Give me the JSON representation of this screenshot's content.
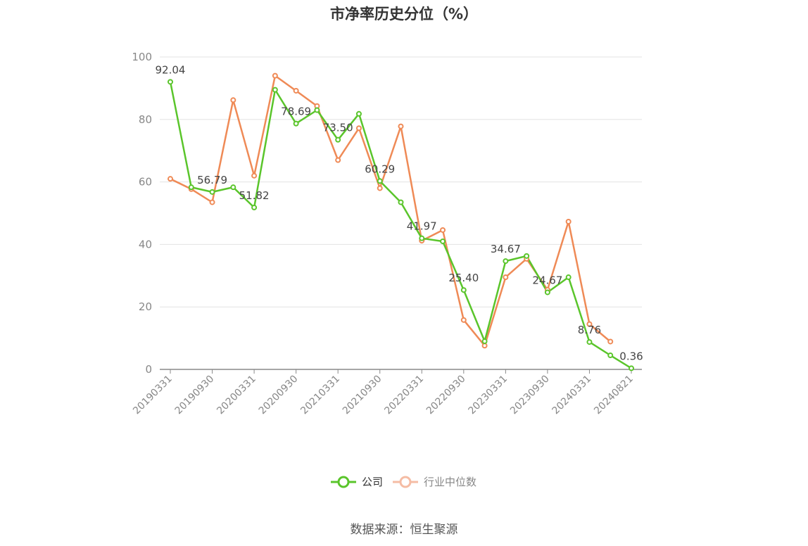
{
  "chart_data": {
    "type": "line",
    "title": "市净率历史分位（%）",
    "x": [
      "20190331",
      "20190630",
      "20190930",
      "20191231",
      "20200331",
      "20200630",
      "20200930",
      "20201231",
      "20210331",
      "20210630",
      "20210930",
      "20211231",
      "20220331",
      "20220630",
      "20220930",
      "20221231",
      "20230331",
      "20230630",
      "20230930",
      "20231231",
      "20240331",
      "20240630",
      "20240821"
    ],
    "x_tick_labels": [
      "20190331",
      "20190930",
      "20200331",
      "20200930",
      "20210331",
      "20210930",
      "20220331",
      "20220930",
      "20230331",
      "20230930",
      "20240331",
      "20240821"
    ],
    "ylim": [
      0,
      100
    ],
    "y_ticks": [
      0,
      20,
      40,
      60,
      80,
      100
    ],
    "grid": true,
    "legend_position": "bottom-center",
    "series": [
      {
        "name": "公司",
        "color": "#5ac52b",
        "values": [
          92.04,
          58.3,
          56.79,
          58.3,
          51.82,
          89.5,
          78.69,
          83.0,
          73.5,
          81.8,
          60.29,
          53.5,
          41.97,
          41.0,
          25.4,
          9.0,
          34.67,
          36.3,
          24.67,
          29.5,
          8.76,
          4.5,
          0.36
        ],
        "data_labels": [
          {
            "index": 0,
            "text": "92.04"
          },
          {
            "index": 2,
            "text": "56.79"
          },
          {
            "index": 4,
            "text": "51.82"
          },
          {
            "index": 6,
            "text": "78.69"
          },
          {
            "index": 8,
            "text": "73.50"
          },
          {
            "index": 10,
            "text": "60.29"
          },
          {
            "index": 12,
            "text": "41.97"
          },
          {
            "index": 14,
            "text": "25.40"
          },
          {
            "index": 16,
            "text": "34.67"
          },
          {
            "index": 18,
            "text": "24.67"
          },
          {
            "index": 20,
            "text": "8.76"
          },
          {
            "index": 22,
            "text": "0.36"
          }
        ]
      },
      {
        "name": "行业中位数",
        "color": "#ef8a56",
        "values": [
          61.0,
          57.7,
          53.5,
          86.2,
          62.0,
          94.0,
          89.2,
          84.3,
          67.0,
          77.2,
          58.0,
          77.8,
          41.2,
          44.6,
          15.8,
          7.6,
          29.5,
          35.4,
          25.5,
          47.3,
          14.5,
          8.9,
          null
        ]
      }
    ]
  },
  "source": "数据来源：恒生聚源"
}
